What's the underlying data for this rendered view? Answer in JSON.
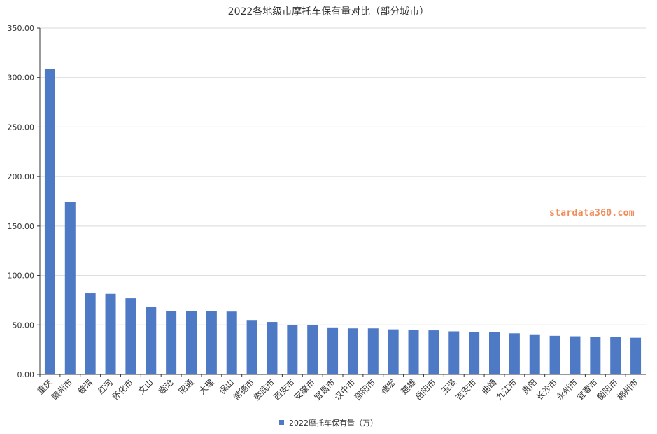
{
  "chart_data": {
    "type": "bar",
    "title": "2022各地级市摩托车保有量对比（部分城市）",
    "xlabel": "",
    "ylabel": "",
    "ylim": [
      0,
      350
    ],
    "y_ticks": [
      "0.00",
      "50.00",
      "100.00",
      "150.00",
      "200.00",
      "250.00",
      "300.00",
      "350.00"
    ],
    "grid": true,
    "legend_position": "bottom-center",
    "categories": [
      "重庆",
      "赣州市",
      "普洱",
      "红河",
      "怀化市",
      "文山",
      "临沧",
      "昭通",
      "大理",
      "保山",
      "常德市",
      "娄底市",
      "西安市",
      "安康市",
      "宜昌市",
      "汉中市",
      "邵阳市",
      "德宏",
      "楚雄",
      "岳阳市",
      "玉溪",
      "吉安市",
      "曲靖",
      "九江市",
      "贵阳",
      "长沙市",
      "永州市",
      "宜春市",
      "衡阳市",
      "郴州市"
    ],
    "series": [
      {
        "name": "2022摩托车保有量（万）",
        "values": [
          309,
          174.5,
          82,
          81.5,
          77,
          68.5,
          64,
          64,
          64,
          63.5,
          55,
          53,
          49.5,
          49.5,
          47.5,
          46.5,
          46.5,
          45.5,
          45,
          44.5,
          43.5,
          43,
          43,
          41.5,
          40.5,
          39,
          38.5,
          37.5,
          37.5,
          37
        ]
      }
    ],
    "colors": {
      "bar": "#4e79c4",
      "axis": "#333333",
      "grid": "#d9d9d9",
      "text": "#333333"
    }
  },
  "watermark": {
    "text": "stardata360.com",
    "color": "#f08c5a"
  }
}
